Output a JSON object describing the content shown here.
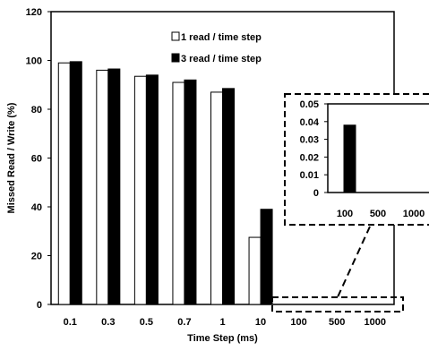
{
  "chart_data": [
    {
      "type": "bar",
      "role": "main",
      "title": "",
      "xlabel": "Time Step (ms)",
      "ylabel": "Missed Read / Write (%)",
      "ylim": [
        0,
        120
      ],
      "yticks": [
        0,
        20,
        40,
        60,
        80,
        100,
        120
      ],
      "grid": false,
      "legend_position": "top-right",
      "categories": [
        "0.1",
        "0.3",
        "0.5",
        "0.7",
        "1",
        "10",
        "100",
        "500",
        "1000"
      ],
      "series": [
        {
          "name": "1 read / time step",
          "color": "#ffffff",
          "values": [
            99,
            96,
            93.5,
            91,
            87,
            27.5,
            0,
            0,
            0
          ]
        },
        {
          "name": "3 read / time step",
          "color": "#000000",
          "values": [
            99.5,
            96.5,
            94,
            92,
            88.5,
            39,
            0,
            0,
            0
          ]
        }
      ]
    },
    {
      "type": "bar",
      "role": "inset",
      "title": "",
      "ylim": [
        0,
        0.05
      ],
      "yticks": [
        "0",
        "0.01",
        "0.02",
        "0.03",
        "0.04",
        "0.05"
      ],
      "categories": [
        "100",
        "500",
        "1000"
      ],
      "series": [
        {
          "name": "1 read / time step",
          "color": "#ffffff",
          "values": [
            0,
            0,
            0
          ]
        },
        {
          "name": "3 read / time step",
          "color": "#000000",
          "values": [
            0.038,
            0,
            0
          ]
        }
      ]
    }
  ]
}
